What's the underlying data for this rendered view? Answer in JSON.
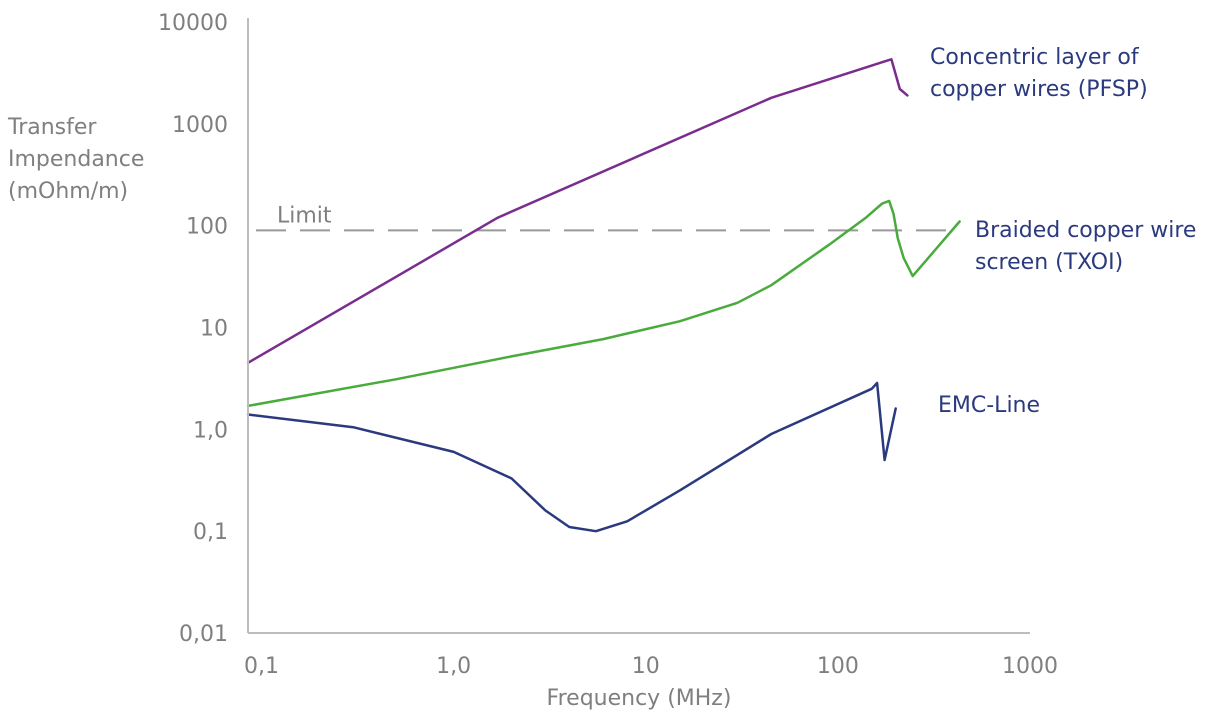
{
  "chart_data": {
    "type": "line",
    "x_scale": "log",
    "y_scale": "log",
    "xlabel": "Frequency (MHz)",
    "ylabel": [
      "Transfer",
      "Impendance",
      "(mOhm/m)"
    ],
    "xlim": [
      0.085,
      1000
    ],
    "ylim": [
      0.01,
      10000
    ],
    "x_ticks": [
      0.1,
      1,
      10,
      100,
      1000
    ],
    "x_tick_labels": [
      "0,1",
      "1,0",
      "10",
      "100",
      "1000"
    ],
    "y_ticks": [
      0.01,
      0.1,
      1,
      10,
      100,
      1000,
      10000
    ],
    "y_tick_labels": [
      "0,01",
      "0,1",
      "1,0",
      "10",
      "100",
      "1000",
      "10000"
    ],
    "grid": false,
    "limit": {
      "label": "Limit",
      "y": 90,
      "color": "#999999"
    },
    "series": [
      {
        "name": [
          "Concentric layer of",
          "copper wires (PFSP)"
        ],
        "color": "#7b2d8e",
        "points": [
          [
            0.085,
            4.5
          ],
          [
            1.7,
            120
          ],
          [
            45,
            1800
          ],
          [
            190,
            4300
          ],
          [
            210,
            2200
          ],
          [
            230,
            1900
          ]
        ]
      },
      {
        "name": [
          "Braided copper wire",
          "screen (TXOI)"
        ],
        "color": "#4aab3d",
        "points": [
          [
            0.085,
            1.7
          ],
          [
            0.5,
            3.1
          ],
          [
            2,
            5.2
          ],
          [
            6,
            7.7
          ],
          [
            15,
            11.5
          ],
          [
            30,
            17.5
          ],
          [
            45,
            26
          ],
          [
            90,
            65
          ],
          [
            140,
            120
          ],
          [
            170,
            165
          ],
          [
            185,
            175
          ],
          [
            195,
            130
          ],
          [
            205,
            75
          ],
          [
            220,
            48
          ],
          [
            245,
            32
          ],
          [
            430,
            110
          ]
        ]
      },
      {
        "name": "EMC-Line",
        "color": "#2b3a7e",
        "points": [
          [
            0.085,
            1.4
          ],
          [
            0.3,
            1.05
          ],
          [
            1,
            0.6
          ],
          [
            2,
            0.33
          ],
          [
            3,
            0.16
          ],
          [
            4,
            0.11
          ],
          [
            5.5,
            0.1
          ],
          [
            8,
            0.125
          ],
          [
            15,
            0.25
          ],
          [
            45,
            0.9
          ],
          [
            150,
            2.5
          ],
          [
            160,
            2.85
          ],
          [
            175,
            0.5
          ],
          [
            200,
            1.6
          ]
        ]
      }
    ]
  }
}
